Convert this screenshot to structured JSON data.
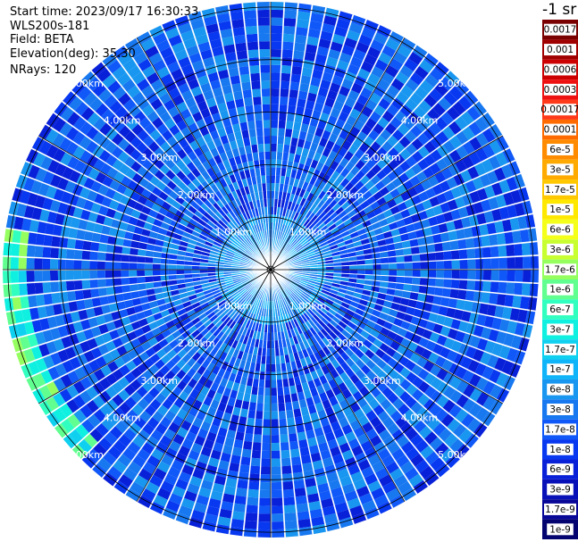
{
  "info": {
    "start_time": "Start time: 2023/09/17 16:30:33",
    "device": "WLS200s-181",
    "field": "Field: BETA",
    "elevation": "Elevation(deg): 35.30",
    "nrays": "NRays: 120"
  },
  "colors": {
    "background": "#ffffff",
    "ring_line": "#000000",
    "range_label": "#ffffff"
  },
  "chart_data": {
    "type": "heatmap",
    "projection": "polar-ppi",
    "title": "",
    "n_rays": 120,
    "max_range_km": 5.1,
    "range_rings_km": [
      1,
      2,
      3,
      4,
      5
    ],
    "range_labels": [
      "1.00km",
      "2.00km",
      "3.00km",
      "4.00km",
      "5.00km"
    ],
    "radial_lines_deg": [
      0,
      30,
      60,
      90,
      120,
      150,
      180,
      210,
      240,
      270,
      300,
      330
    ],
    "field": "BETA",
    "unit": "-1 sr",
    "colorbar": {
      "levels": [
        "0.0017",
        "0.001",
        "0.0006",
        "0.0003",
        "0.00017",
        "0.0001",
        "6e-5",
        "3e-5",
        "1.7e-5",
        "1e-5",
        "6e-6",
        "3e-6",
        "1.7e-6",
        "1e-6",
        "6e-7",
        "3e-7",
        "1.7e-7",
        "1e-7",
        "6e-8",
        "3e-8",
        "1.7e-8",
        "1e-8",
        "6e-9",
        "3e-9",
        "1.7e-9",
        "1e-9"
      ],
      "colors": [
        "#7a0000",
        "#a00000",
        "#cc0000",
        "#ee1111",
        "#ff3a1a",
        "#ff6a00",
        "#ff8c00",
        "#ffaa00",
        "#ffc800",
        "#ffe800",
        "#f4ff1a",
        "#c8ff30",
        "#96ff60",
        "#60ff90",
        "#30ffc0",
        "#10f0e0",
        "#10d0f0",
        "#10b4f8",
        "#1896f0",
        "#1878f0",
        "#1058f8",
        "#0838f0",
        "#0820d8",
        "#0810b8",
        "#080898",
        "#040470"
      ]
    },
    "typical_level": "1.7e-8",
    "high_backscatter_sector_deg": [
      225,
      280
    ],
    "high_backscatter_range_km": [
      4.8,
      5.1
    ]
  }
}
